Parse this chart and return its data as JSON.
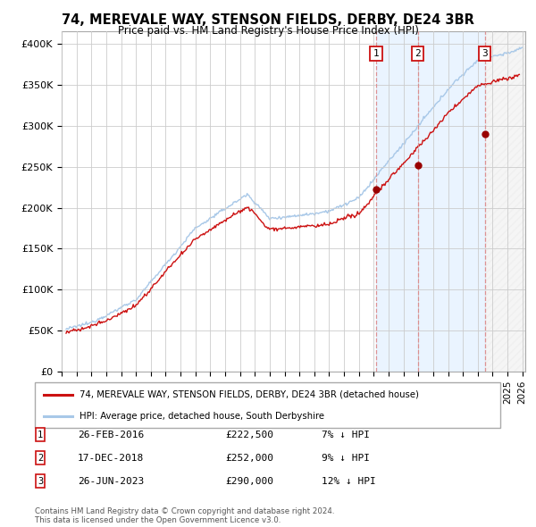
{
  "title": "74, MEREVALE WAY, STENSON FIELDS, DERBY, DE24 3BR",
  "subtitle": "Price paid vs. HM Land Registry's House Price Index (HPI)",
  "title_fontsize": 10.5,
  "subtitle_fontsize": 8.5,
  "ylabel_ticks": [
    "£0",
    "£50K",
    "£100K",
    "£150K",
    "£200K",
    "£250K",
    "£300K",
    "£350K",
    "£400K"
  ],
  "ytick_values": [
    0,
    50000,
    100000,
    150000,
    200000,
    250000,
    300000,
    350000,
    400000
  ],
  "ylim": [
    0,
    415000
  ],
  "xlim_start": 1995.3,
  "xlim_end": 2026.2,
  "year_ticks": [
    1995,
    1996,
    1997,
    1998,
    1999,
    2000,
    2001,
    2002,
    2003,
    2004,
    2005,
    2006,
    2007,
    2008,
    2009,
    2010,
    2011,
    2012,
    2013,
    2014,
    2015,
    2016,
    2017,
    2018,
    2019,
    2020,
    2021,
    2022,
    2023,
    2024,
    2025,
    2026
  ],
  "hpi_color": "#a8c8e8",
  "price_color": "#cc1111",
  "dashed_line_color": "#dd8888",
  "shade_color": "#ddeeff",
  "sale_markers": [
    {
      "year": 2016.15,
      "price": 222500,
      "label": "1"
    },
    {
      "year": 2018.96,
      "price": 252000,
      "label": "2"
    },
    {
      "year": 2023.48,
      "price": 290000,
      "label": "3"
    }
  ],
  "legend_entries": [
    "74, MEREVALE WAY, STENSON FIELDS, DERBY, DE24 3BR (detached house)",
    "HPI: Average price, detached house, South Derbyshire"
  ],
  "table_entries": [
    {
      "num": "1",
      "date": "26-FEB-2016",
      "price": "£222,500",
      "pct": "7% ↓ HPI"
    },
    {
      "num": "2",
      "date": "17-DEC-2018",
      "price": "£252,000",
      "pct": "9% ↓ HPI"
    },
    {
      "num": "3",
      "date": "26-JUN-2023",
      "price": "£290,000",
      "pct": "12% ↓ HPI"
    }
  ],
  "footnote": "Contains HM Land Registry data © Crown copyright and database right 2024.\nThis data is licensed under the Open Government Licence v3.0.",
  "background_color": "#ffffff",
  "grid_color": "#cccccc"
}
